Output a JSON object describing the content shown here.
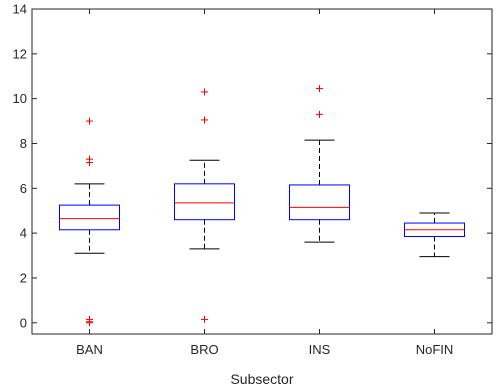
{
  "chart_data": {
    "type": "boxplot",
    "title": "",
    "xlabel": "Subsector",
    "ylabel": "",
    "ylim": [
      -0.5,
      14
    ],
    "yticks": [
      0,
      2,
      4,
      6,
      8,
      10,
      12,
      14
    ],
    "ytick_labels": [
      "0",
      "2",
      "4",
      "6",
      "8",
      "10",
      "12",
      "14"
    ],
    "grid": false,
    "categories": [
      "BAN",
      "BRO",
      "INS",
      "NoFIN"
    ],
    "boxes": [
      {
        "category": "BAN",
        "whisker_low": 3.1,
        "q1": 4.15,
        "median": 4.65,
        "q3": 5.25,
        "whisker_high": 6.2,
        "outliers": [
          9.0,
          7.3,
          7.15,
          0.15,
          0.05,
          0.0
        ]
      },
      {
        "category": "BRO",
        "whisker_low": 3.3,
        "q1": 4.6,
        "median": 5.35,
        "q3": 6.2,
        "whisker_high": 7.25,
        "outliers": [
          10.3,
          9.05,
          0.15
        ]
      },
      {
        "category": "INS",
        "whisker_low": 3.6,
        "q1": 4.6,
        "median": 5.15,
        "q3": 6.15,
        "whisker_high": 8.15,
        "outliers": [
          10.45,
          9.3
        ]
      },
      {
        "category": "NoFIN",
        "whisker_low": 2.95,
        "q1": 3.85,
        "median": 4.15,
        "q3": 4.45,
        "whisker_high": 4.9,
        "outliers": []
      }
    ],
    "colors": {
      "box": "#0000ff",
      "median": "#ff0000",
      "whisker": "#000000",
      "outlier": "#ff0000",
      "axes": "#262626"
    }
  }
}
